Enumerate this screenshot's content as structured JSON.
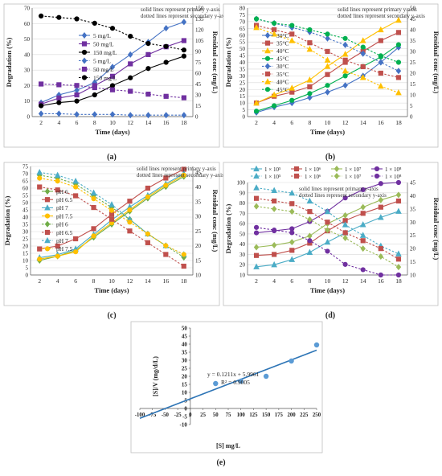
{
  "figure": {
    "panel_labels": [
      "(a)",
      "(b)",
      "(c)",
      "(d)",
      "(e)"
    ]
  },
  "chart_data": [
    {
      "id": "a",
      "type": "line",
      "note1": "solid lines represent primary y-axis",
      "note2": "dotted lines represent secondary y-axis",
      "xlabel": "Time (days)",
      "ylabel": "Degradation (%)",
      "y2label": "Residual conc (mg/L)",
      "x": [
        2,
        4,
        6,
        8,
        10,
        12,
        14,
        16,
        18
      ],
      "xlim": [
        1,
        19
      ],
      "ylim": [
        0,
        70
      ],
      "yticks": [
        0,
        10,
        20,
        30,
        40,
        50,
        60,
        70
      ],
      "y2lim": [
        0,
        150
      ],
      "y2ticks": [
        0,
        15,
        30,
        45,
        60,
        75,
        90,
        105,
        120,
        135,
        150
      ],
      "series": [
        {
          "name": "5 mg/L",
          "axis": "primary",
          "color": "#4472c4",
          "marker": "diamond",
          "values": [
            9,
            14,
            17,
            22,
            32,
            40,
            48,
            57,
            61
          ]
        },
        {
          "name": "50 mg/L",
          "axis": "primary",
          "color": "#7030a0",
          "marker": "square",
          "values": [
            8,
            12,
            14,
            20,
            26,
            34,
            40,
            45,
            49
          ]
        },
        {
          "name": "150 mg/L",
          "axis": "primary",
          "color": "#000000",
          "marker": "circle",
          "values": [
            7,
            9,
            10,
            14,
            20,
            25,
            31,
            35,
            39
          ]
        },
        {
          "name": "5 mg/L",
          "axis": "secondary",
          "color": "#4472c4",
          "marker": "diamond",
          "values": [
            4,
            4,
            3,
            3,
            3,
            2,
            2,
            2,
            2
          ]
        },
        {
          "name": "50 mg/L",
          "axis": "secondary",
          "color": "#7030a0",
          "marker": "square",
          "values": [
            45,
            44,
            43,
            40,
            37,
            35,
            31,
            28,
            26
          ]
        },
        {
          "name": "150 mg/L",
          "axis": "secondary",
          "color": "#000000",
          "marker": "circle",
          "values": [
            139,
            137,
            135,
            129,
            122,
            111,
            101,
            97,
            92
          ]
        }
      ]
    },
    {
      "id": "b",
      "type": "line",
      "note1": "solid lines represent primary y-axis",
      "note2": "dotted lines represent secondary y-axis",
      "xlabel": "Time (days)",
      "ylabel": "Degradation (%)",
      "y2label": "Residual conc (mg/L)",
      "x": [
        2,
        4,
        6,
        8,
        10,
        12,
        14,
        16,
        18
      ],
      "xlim": [
        1,
        19
      ],
      "ylim": [
        0,
        80
      ],
      "yticks": [
        0,
        5,
        10,
        15,
        20,
        25,
        30,
        35,
        40,
        45,
        50,
        55,
        60,
        65,
        70,
        75,
        80
      ],
      "y2lim": [
        0,
        50
      ],
      "y2ticks": [
        0,
        5,
        10,
        15,
        20,
        25,
        30,
        35,
        40,
        45,
        50
      ],
      "series": [
        {
          "name": "30°C",
          "axis": "primary",
          "color": "#4472c4",
          "marker": "diamond",
          "values": [
            3,
            7,
            10,
            14,
            18,
            23,
            30,
            40,
            51
          ]
        },
        {
          "name": "35°C",
          "axis": "primary",
          "color": "#c0504d",
          "marker": "square",
          "values": [
            10,
            15,
            18,
            22,
            31,
            40,
            48,
            56,
            62
          ]
        },
        {
          "name": "40°C",
          "axis": "primary",
          "color": "#ffc000",
          "marker": "triangle",
          "values": [
            10,
            16,
            21,
            27,
            37,
            46,
            56,
            64,
            71
          ]
        },
        {
          "name": "45°C",
          "axis": "primary",
          "color": "#00b050",
          "marker": "circle",
          "values": [
            4,
            8,
            12,
            17,
            23,
            30,
            37,
            44,
            53
          ]
        },
        {
          "name": "30°C",
          "axis": "secondary",
          "color": "#4472c4",
          "marker": "diamond",
          "values": [
            45,
            43,
            41,
            39,
            36,
            33,
            29,
            25,
            21
          ]
        },
        {
          "name": "35°C",
          "axis": "secondary",
          "color": "#c0504d",
          "marker": "square",
          "values": [
            42,
            40,
            38,
            34,
            30,
            26,
            23,
            20,
            18
          ]
        },
        {
          "name": "40°C",
          "axis": "secondary",
          "color": "#ffc000",
          "marker": "triangle",
          "values": [
            41,
            38,
            35,
            31,
            26,
            21,
            18,
            14,
            11
          ]
        },
        {
          "name": "45°C",
          "axis": "secondary",
          "color": "#00b050",
          "marker": "circle",
          "values": [
            45,
            43,
            42,
            40,
            38,
            36,
            32,
            28,
            25
          ]
        }
      ]
    },
    {
      "id": "c",
      "type": "line",
      "note1": "solid lines represent primary y-axis",
      "note2": "dotted lines represent secondary y-axis",
      "xlabel": "Time (days)",
      "ylabel": "Degradation (%)",
      "y2label": "Residual conc (mg/L)",
      "x": [
        2,
        4,
        6,
        8,
        10,
        12,
        14,
        16,
        18
      ],
      "xlim": [
        1,
        19
      ],
      "ylim": [
        0,
        75
      ],
      "yticks": [
        0,
        5,
        10,
        15,
        20,
        25,
        30,
        35,
        40,
        45,
        50,
        55,
        60,
        65,
        70,
        75
      ],
      "y2lim": [
        10,
        47
      ],
      "y2ticks": [
        10,
        15,
        20,
        25,
        30,
        35,
        40,
        45
      ],
      "series": [
        {
          "name": "pH 6",
          "axis": "primary",
          "color": "#70ad47",
          "marker": "diamond",
          "values": [
            10,
            13,
            17,
            26,
            35,
            44,
            53,
            61,
            68
          ]
        },
        {
          "name": "pH 6.5",
          "axis": "primary",
          "color": "#c0504d",
          "marker": "square",
          "values": [
            18,
            20,
            25,
            32,
            42,
            51,
            60,
            67,
            73
          ]
        },
        {
          "name": "pH 7",
          "axis": "primary",
          "color": "#4bacc6",
          "marker": "triangle",
          "values": [
            12,
            14,
            18,
            28,
            38,
            47,
            55,
            63,
            70
          ]
        },
        {
          "name": "pH 7.5",
          "axis": "primary",
          "color": "#ffc000",
          "marker": "circle",
          "values": [
            11,
            13,
            16,
            27,
            36,
            45,
            54,
            62,
            69
          ]
        },
        {
          "name": "pH 6",
          "axis": "secondary",
          "color": "#70ad47",
          "marker": "diamond",
          "values": [
            44,
            43,
            41,
            37,
            33,
            29,
            24,
            20,
            16
          ]
        },
        {
          "name": "pH 6.5",
          "axis": "secondary",
          "color": "#c0504d",
          "marker": "square",
          "values": [
            40,
            39,
            37,
            33,
            29,
            25,
            21,
            17,
            13
          ]
        },
        {
          "name": "pH 7",
          "axis": "secondary",
          "color": "#4bacc6",
          "marker": "triangle",
          "values": [
            45,
            44,
            42,
            38,
            34,
            29,
            24,
            20,
            17
          ]
        },
        {
          "name": "pH 7.5",
          "axis": "secondary",
          "color": "#ffc000",
          "marker": "circle",
          "values": [
            43,
            42,
            40,
            36,
            32,
            28,
            24,
            20,
            17
          ]
        }
      ]
    },
    {
      "id": "d",
      "type": "line",
      "legend_row1": [
        "1 × 10⁵",
        "1 × 10⁶",
        "1 × 10⁷",
        "1 × 10⁸"
      ],
      "legend_row2": [
        "1 × 10⁵",
        "1 × 10⁶",
        "1 × 10⁷",
        "1 × 10⁸"
      ],
      "note1": "solid lines represent primary y-axis",
      "note2": "dotted lines represent secondary y-axis",
      "xlabel": "Time (days)",
      "ylabel": "Degradation (%)",
      "y2label": "Residual conc (mg/L)",
      "x": [
        2,
        4,
        6,
        8,
        10,
        12,
        14,
        16,
        18
      ],
      "xlim": [
        1,
        19
      ],
      "ylim": [
        10,
        100
      ],
      "yticks": [
        10,
        20,
        30,
        40,
        50,
        60,
        70,
        80,
        90,
        100
      ],
      "y2lim": [
        10,
        45
      ],
      "y2ticks": [
        10,
        15,
        20,
        25,
        30,
        35,
        40,
        45
      ],
      "series": [
        {
          "name": "1 × 10⁵",
          "axis": "primary",
          "color": "#4bacc6",
          "marker": "triangle",
          "values": [
            18,
            20,
            25,
            32,
            42,
            51,
            59,
            66,
            72
          ]
        },
        {
          "name": "1 × 10⁶",
          "axis": "primary",
          "color": "#c0504d",
          "marker": "square",
          "values": [
            29,
            30,
            34,
            41,
            53,
            63,
            70,
            76,
            82
          ]
        },
        {
          "name": "1 × 10⁷",
          "axis": "primary",
          "color": "#9bbb59",
          "marker": "diamond",
          "values": [
            37,
            39,
            42,
            48,
            60,
            68,
            76,
            83,
            88
          ]
        },
        {
          "name": "1 × 10⁸",
          "axis": "primary",
          "color": "#7030a0",
          "marker": "circle",
          "values": [
            51,
            53,
            55,
            62,
            72,
            85,
            93,
            99,
            100
          ]
        },
        {
          "name": "1 × 10⁵",
          "axis": "secondary",
          "color": "#4bacc6",
          "marker": "triangle",
          "values": [
            43,
            42,
            41,
            38,
            34,
            29,
            25,
            21,
            18
          ]
        },
        {
          "name": "1 × 10⁶",
          "axis": "secondary",
          "color": "#c0504d",
          "marker": "square",
          "values": [
            39,
            38,
            37,
            34,
            30,
            26,
            23,
            20,
            16
          ]
        },
        {
          "name": "1 × 10⁷",
          "axis": "secondary",
          "color": "#9bbb59",
          "marker": "diamond",
          "values": [
            36,
            35,
            34,
            31,
            27,
            24,
            20,
            17,
            13
          ]
        },
        {
          "name": "1 × 10⁸",
          "axis": "secondary",
          "color": "#7030a0",
          "marker": "circle",
          "values": [
            28,
            27,
            26,
            23,
            19,
            14,
            12,
            10,
            10
          ]
        }
      ]
    },
    {
      "id": "e",
      "type": "scatter",
      "xlabel": "[S] mg/L",
      "ylabel": "[S]/V (mg/d/L)",
      "equation": "y = 0.1211x + 5.9961",
      "r2": "R² = 0.9005",
      "xlim": [
        -100,
        250
      ],
      "xticks": [
        -100,
        -75,
        -50,
        -25,
        0,
        25,
        50,
        75,
        100,
        125,
        150,
        175,
        200,
        225,
        250
      ],
      "ylim": [
        -10,
        50
      ],
      "yticks": [
        -10,
        -5,
        0,
        5,
        10,
        15,
        20,
        25,
        30,
        35,
        40,
        45,
        50
      ],
      "points": [
        [
          50,
          15.5
        ],
        [
          100,
          17
        ],
        [
          150,
          20
        ],
        [
          200,
          29.5
        ],
        [
          250,
          39.5
        ]
      ],
      "trendline": {
        "slope": 0.1211,
        "intercept": 5.9961,
        "x_from": -100,
        "x_to": 250
      },
      "color": "#5b9bd5"
    }
  ]
}
